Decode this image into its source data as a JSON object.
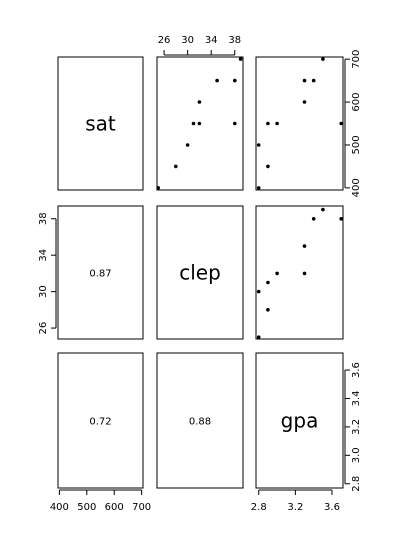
{
  "chart_data": {
    "type": "scatter",
    "variables": [
      {
        "name": "sat",
        "range": [
          395,
          705
        ],
        "ticks": [
          400,
          500,
          600,
          700
        ]
      },
      {
        "name": "clep",
        "range": [
          24.8,
          39.4
        ],
        "ticks": [
          26,
          30,
          34,
          38
        ]
      },
      {
        "name": "gpa",
        "range": [
          2.77,
          3.72
        ],
        "ticks": [
          2.8,
          3.0,
          3.2,
          3.4,
          3.6
        ]
      }
    ],
    "bottom_tick_labels": {
      "sat": [
        "400",
        "500",
        "600",
        "700"
      ],
      "gpa": [
        "2.8",
        "3.2",
        "3.6"
      ]
    },
    "top_tick_labels": {
      "clep": [
        "26",
        "30",
        "34",
        "38"
      ]
    },
    "left_tick_labels": {
      "clep": [
        "26",
        "30",
        "34",
        "38"
      ]
    },
    "right_tick_labels": {
      "sat": [
        "400",
        "500",
        "600",
        "700"
      ],
      "gpa": [
        "2.8",
        "3.0",
        "3.2",
        "3.4",
        "3.6"
      ]
    },
    "correlations": [
      {
        "row": "clep",
        "col": "sat",
        "value": "0.87"
      },
      {
        "row": "gpa",
        "col": "sat",
        "value": "0.72"
      },
      {
        "row": "gpa",
        "col": "clep",
        "value": "0.88"
      }
    ],
    "observations": [
      {
        "sat": 400,
        "clep": 25,
        "gpa": 2.8
      },
      {
        "sat": 450,
        "clep": 28,
        "gpa": 2.9
      },
      {
        "sat": 500,
        "clep": 30,
        "gpa": 2.8
      },
      {
        "sat": 550,
        "clep": 31,
        "gpa": 2.9
      },
      {
        "sat": 550,
        "clep": 32,
        "gpa": 3.0
      },
      {
        "sat": 600,
        "clep": 32,
        "gpa": 3.3
      },
      {
        "sat": 650,
        "clep": 35,
        "gpa": 3.3
      },
      {
        "sat": 650,
        "clep": 38,
        "gpa": 3.4
      },
      {
        "sat": 550,
        "clep": 38,
        "gpa": 3.7
      },
      {
        "sat": 700,
        "clep": 39,
        "gpa": 3.5
      }
    ]
  }
}
